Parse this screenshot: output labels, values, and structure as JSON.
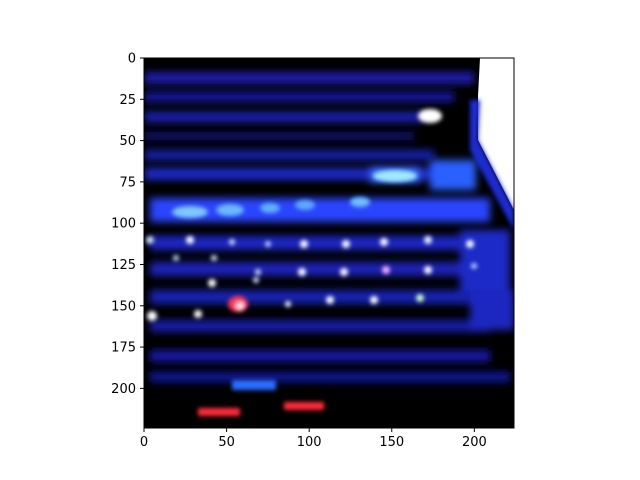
{
  "chart_data": {
    "type": "image",
    "x_ticks": [
      "0",
      "50",
      "100",
      "150",
      "200"
    ],
    "x_tick_values": [
      0,
      50,
      100,
      150,
      200
    ],
    "y_ticks": [
      "0",
      "25",
      "50",
      "75",
      "100",
      "125",
      "150",
      "175",
      "200"
    ],
    "y_tick_values": [
      0,
      25,
      50,
      75,
      100,
      125,
      150,
      175,
      200
    ],
    "xlim": [
      0,
      224
    ],
    "ylim": [
      224,
      0
    ],
    "grid": false,
    "colors": {
      "background": "#000000",
      "key_glow": "#1f3cff",
      "highlight": "#7fe8ff",
      "red_key": "#ff2a3a",
      "corner": "#ffffff"
    }
  }
}
